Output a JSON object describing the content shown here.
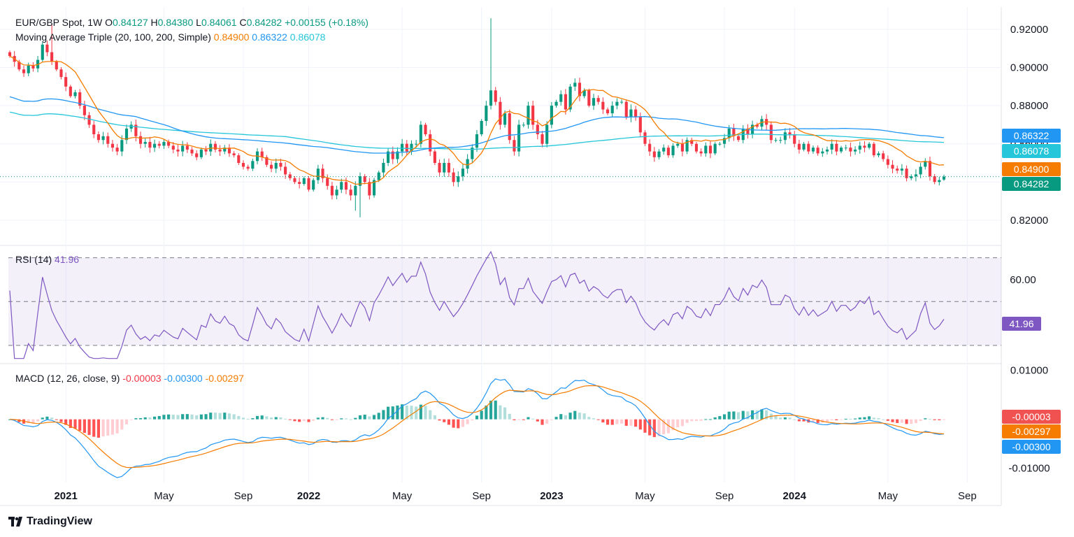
{
  "header": {
    "symbol": "EUR/GBP Spot, 1W",
    "o_label": "O",
    "o_value": "0.84127",
    "h_label": "H",
    "h_value": "0.84380",
    "l_label": "L",
    "l_value": "0.84061",
    "c_label": "C",
    "c_value": "0.84282",
    "change": "+0.00155 (+0.18%)"
  },
  "ma_legend": {
    "label": "Moving Average Triple (20, 100, 200, Simple)",
    "ma20": "0.84900",
    "ma100": "0.86322",
    "ma200": "0.86078"
  },
  "rsi_legend": {
    "label": "RSI (14)",
    "value": "41.96"
  },
  "macd_legend": {
    "label": "MACD (12, 26, close, 9)",
    "hist": "-0.00003",
    "macd": "-0.00300",
    "signal": "-0.00297"
  },
  "tags": {
    "ma100": "0.86322",
    "ma200": "0.86078",
    "ma20": "0.84900",
    "price": "0.84282",
    "rsi": "41.96",
    "macd_hist": "-0.00003",
    "macd_signal": "-0.00297",
    "macd_line": "-0.00300"
  },
  "footer": {
    "brand": "TradingView"
  },
  "colors": {
    "up": "#089981",
    "down": "#f23645",
    "ma20": "#f57c00",
    "ma100": "#2196f3",
    "ma200": "#26c6da",
    "rsi": "#7e57c2",
    "macd": "#2196f3",
    "signal": "#f57c00"
  },
  "chart_data": [
    {
      "type": "candlestick",
      "title": "EUR/GBP Spot, 1W",
      "ylim": [
        0.80714,
        0.93023
      ],
      "y_ticks": [
        "0.82000",
        "0.84000",
        "0.86000",
        "0.88000",
        "0.90000",
        "0.92000"
      ],
      "x_ticks": [
        {
          "label": "2021",
          "bold": true,
          "week": 12
        },
        {
          "label": "May",
          "bold": false,
          "week": 33
        },
        {
          "label": "Sep",
          "bold": false,
          "week": 50
        },
        {
          "label": "2022",
          "bold": true,
          "week": 64
        },
        {
          "label": "May",
          "bold": false,
          "week": 84
        },
        {
          "label": "Sep",
          "bold": false,
          "week": 101
        },
        {
          "label": "2023",
          "bold": true,
          "week": 116
        },
        {
          "label": "May",
          "bold": false,
          "week": 136
        },
        {
          "label": "Sep",
          "bold": false,
          "week": 153
        },
        {
          "label": "2024",
          "bold": true,
          "week": 168
        },
        {
          "label": "May",
          "bold": false,
          "week": 188
        },
        {
          "label": "Sep",
          "bold": false,
          "week": 205
        }
      ],
      "close": [
        0.906,
        0.903,
        0.899,
        0.897,
        0.901,
        0.8995,
        0.904,
        0.912,
        0.908,
        0.903,
        0.899,
        0.895,
        0.89,
        0.885,
        0.887,
        0.88,
        0.875,
        0.87,
        0.865,
        0.862,
        0.864,
        0.86,
        0.858,
        0.856,
        0.862,
        0.868,
        0.87,
        0.864,
        0.86,
        0.861,
        0.858,
        0.86,
        0.859,
        0.861,
        0.859,
        0.857,
        0.856,
        0.859,
        0.857,
        0.855,
        0.853,
        0.857,
        0.856,
        0.86,
        0.857,
        0.856,
        0.858,
        0.855,
        0.854,
        0.85,
        0.848,
        0.847,
        0.851,
        0.856,
        0.853,
        0.849,
        0.847,
        0.85,
        0.848,
        0.844,
        0.842,
        0.84,
        0.839,
        0.842,
        0.836,
        0.841,
        0.847,
        0.842,
        0.838,
        0.833,
        0.836,
        0.84,
        0.836,
        0.833,
        0.838,
        0.843,
        0.84,
        0.833,
        0.841,
        0.845,
        0.85,
        0.856,
        0.852,
        0.856,
        0.86,
        0.856,
        0.86,
        0.86,
        0.87,
        0.865,
        0.856,
        0.85,
        0.845,
        0.85,
        0.845,
        0.84,
        0.843,
        0.847,
        0.852,
        0.858,
        0.865,
        0.872,
        0.88,
        0.888,
        0.882,
        0.87,
        0.876,
        0.862,
        0.856,
        0.87,
        0.87,
        0.88,
        0.87,
        0.865,
        0.86,
        0.87,
        0.88,
        0.882,
        0.886,
        0.878,
        0.89,
        0.892,
        0.885,
        0.888,
        0.88,
        0.884,
        0.882,
        0.878,
        0.876,
        0.88,
        0.882,
        0.882,
        0.874,
        0.878,
        0.874,
        0.866,
        0.86,
        0.856,
        0.853,
        0.856,
        0.858,
        0.854,
        0.859,
        0.86,
        0.856,
        0.862,
        0.86,
        0.856,
        0.855,
        0.859,
        0.855,
        0.86,
        0.86,
        0.863,
        0.868,
        0.864,
        0.862,
        0.868,
        0.865,
        0.87,
        0.869,
        0.873,
        0.87,
        0.862,
        0.862,
        0.862,
        0.866,
        0.865,
        0.86,
        0.857,
        0.86,
        0.856,
        0.858,
        0.855,
        0.856,
        0.857,
        0.86,
        0.856,
        0.858,
        0.858,
        0.856,
        0.857,
        0.859,
        0.858,
        0.86,
        0.854,
        0.855,
        0.852,
        0.849,
        0.847,
        0.846,
        0.847,
        0.842,
        0.843,
        0.844,
        0.848,
        0.851,
        0.843,
        0.84,
        0.841,
        0.8428
      ],
      "series_current": {
        "open": 0.84127,
        "high": 0.8438,
        "low": 0.84061,
        "close": 0.84282
      },
      "moving_averages": [
        {
          "name": "MA 20",
          "period": 20,
          "last": 0.849
        },
        {
          "name": "MA 100",
          "period": 100,
          "last": 0.86322
        },
        {
          "name": "MA 200",
          "period": 200,
          "last": 0.86078
        }
      ]
    },
    {
      "type": "line",
      "title": "RSI (14)",
      "ylim": [
        22,
        75
      ],
      "y_ticks": [
        "60.00"
      ],
      "bands": [
        30,
        50,
        70
      ],
      "last": 41.96
    },
    {
      "type": "line+bar",
      "title": "MACD (12, 26, close, 9)",
      "ylim": [
        -0.0129,
        0.0111
      ],
      "y_ticks": [
        "-0.01000",
        "0.01000"
      ],
      "last": {
        "histogram": -3e-05,
        "macd": -0.003,
        "signal": -0.00297
      }
    }
  ]
}
